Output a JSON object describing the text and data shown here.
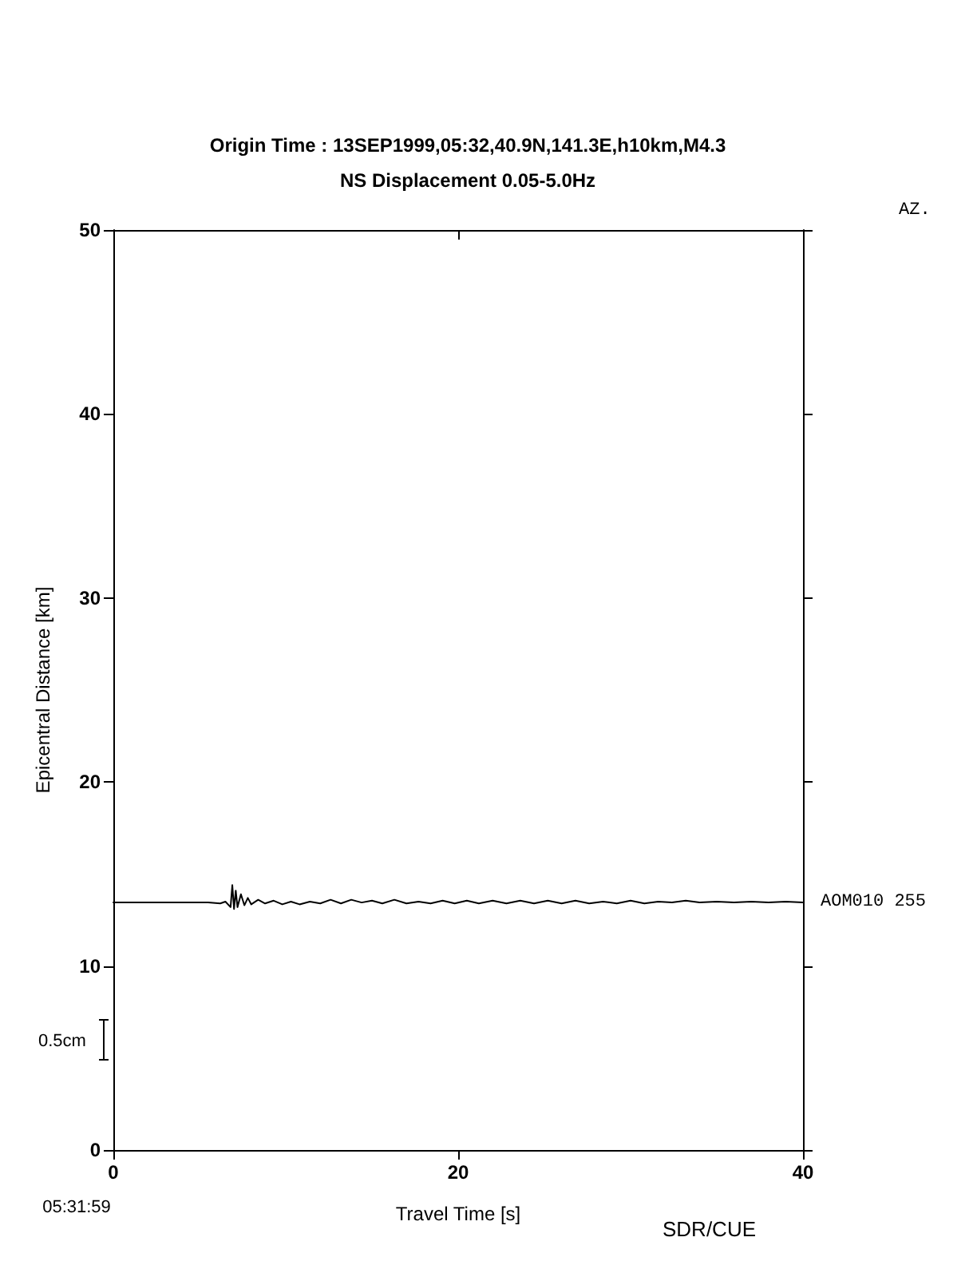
{
  "chart_data": {
    "type": "line",
    "title": "Origin Time : 13SEP1999,05:32,40.9N,141.3E,h10km,M4.3",
    "subtitle": "NS Displacement 0.05-5.0Hz",
    "xlabel": "Travel Time [s]",
    "ylabel": "Epicentral Distance [km]",
    "xlim": [
      0,
      40
    ],
    "xticks": [
      0,
      20,
      40
    ],
    "ylim": [
      0,
      50
    ],
    "yticks": [
      0,
      10,
      20,
      30,
      40,
      50
    ],
    "marker": "none",
    "line_style": "solid",
    "annotations": [
      "AZ.",
      {
        "text": "AOM010 255",
        "x": 40,
        "y": 13.45
      },
      "0.5cm",
      "05:31:59",
      "SDR/CUE"
    ],
    "series": [
      {
        "color": "#000000",
        "x": [
          0,
          5.5,
          6.2,
          6.5,
          6.8,
          6.9,
          7.0,
          7.1,
          7.2,
          7.4,
          7.6,
          7.8,
          8.0,
          8.4,
          8.8,
          9.3,
          9.8,
          10.3,
          10.8,
          11.4,
          12,
          12.6,
          13.2,
          13.8,
          14.4,
          15,
          15.6,
          16.3,
          17,
          17.7,
          18.4,
          19.1,
          19.8,
          20.5,
          21.2,
          22,
          22.8,
          23.6,
          24.4,
          25.2,
          26,
          26.8,
          27.6,
          28.4,
          29.2,
          30,
          30.8,
          31.6,
          32.4,
          33.2,
          34,
          35,
          36,
          37,
          38,
          39,
          40
        ],
        "values": [
          13.45,
          13.45,
          13.4,
          13.5,
          13.2,
          14.4,
          13.1,
          14.1,
          13.2,
          13.9,
          13.3,
          13.7,
          13.35,
          13.6,
          13.4,
          13.55,
          13.35,
          13.5,
          13.35,
          13.5,
          13.4,
          13.6,
          13.4,
          13.6,
          13.45,
          13.55,
          13.4,
          13.6,
          13.4,
          13.5,
          13.4,
          13.55,
          13.4,
          13.55,
          13.4,
          13.55,
          13.4,
          13.55,
          13.4,
          13.55,
          13.4,
          13.55,
          13.4,
          13.5,
          13.4,
          13.55,
          13.4,
          13.5,
          13.45,
          13.55,
          13.45,
          13.5,
          13.45,
          13.5,
          13.45,
          13.5,
          13.45
        ]
      }
    ]
  }
}
